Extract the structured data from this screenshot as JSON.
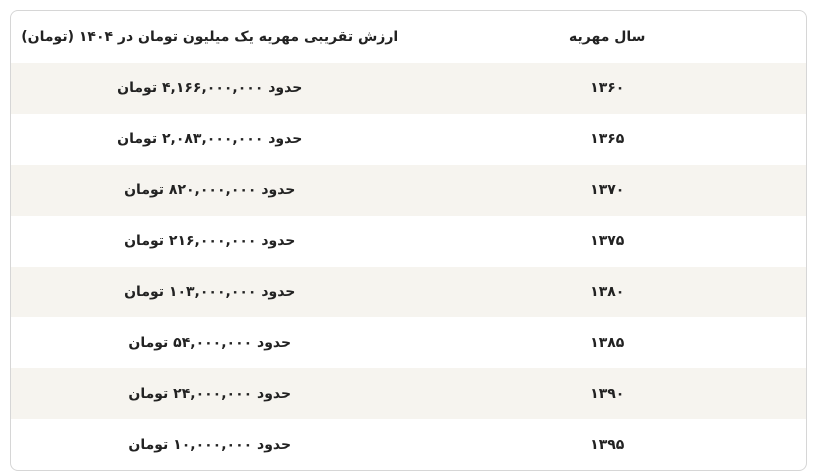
{
  "table": {
    "headers": [
      "سال مهریه",
      "ارزش تقریبی مهریه یک میلیون تومان در ۱۴۰۴ (تومان)"
    ],
    "rows": [
      {
        "year": "۱۳۶۰",
        "value": "حدود ۴,۱۶۶,۰۰۰,۰۰۰ تومان"
      },
      {
        "year": "۱۳۶۵",
        "value": "حدود ۲,۰۸۳,۰۰۰,۰۰۰ تومان"
      },
      {
        "year": "۱۳۷۰",
        "value": "حدود ۸۲۰,۰۰۰,۰۰۰ تومان"
      },
      {
        "year": "۱۳۷۵",
        "value": "حدود ۲۱۶,۰۰۰,۰۰۰ تومان"
      },
      {
        "year": "۱۳۸۰",
        "value": "حدود ۱۰۳,۰۰۰,۰۰۰ تومان"
      },
      {
        "year": "۱۳۸۵",
        "value": "حدود ۵۴,۰۰۰,۰۰۰ تومان"
      },
      {
        "year": "۱۳۹۰",
        "value": "حدود ۲۴,۰۰۰,۰۰۰ تومان"
      },
      {
        "year": "۱۳۹۵",
        "value": "حدود ۱۰,۰۰۰,۰۰۰ تومان"
      }
    ],
    "stripe_color": "#f6f4ef"
  }
}
